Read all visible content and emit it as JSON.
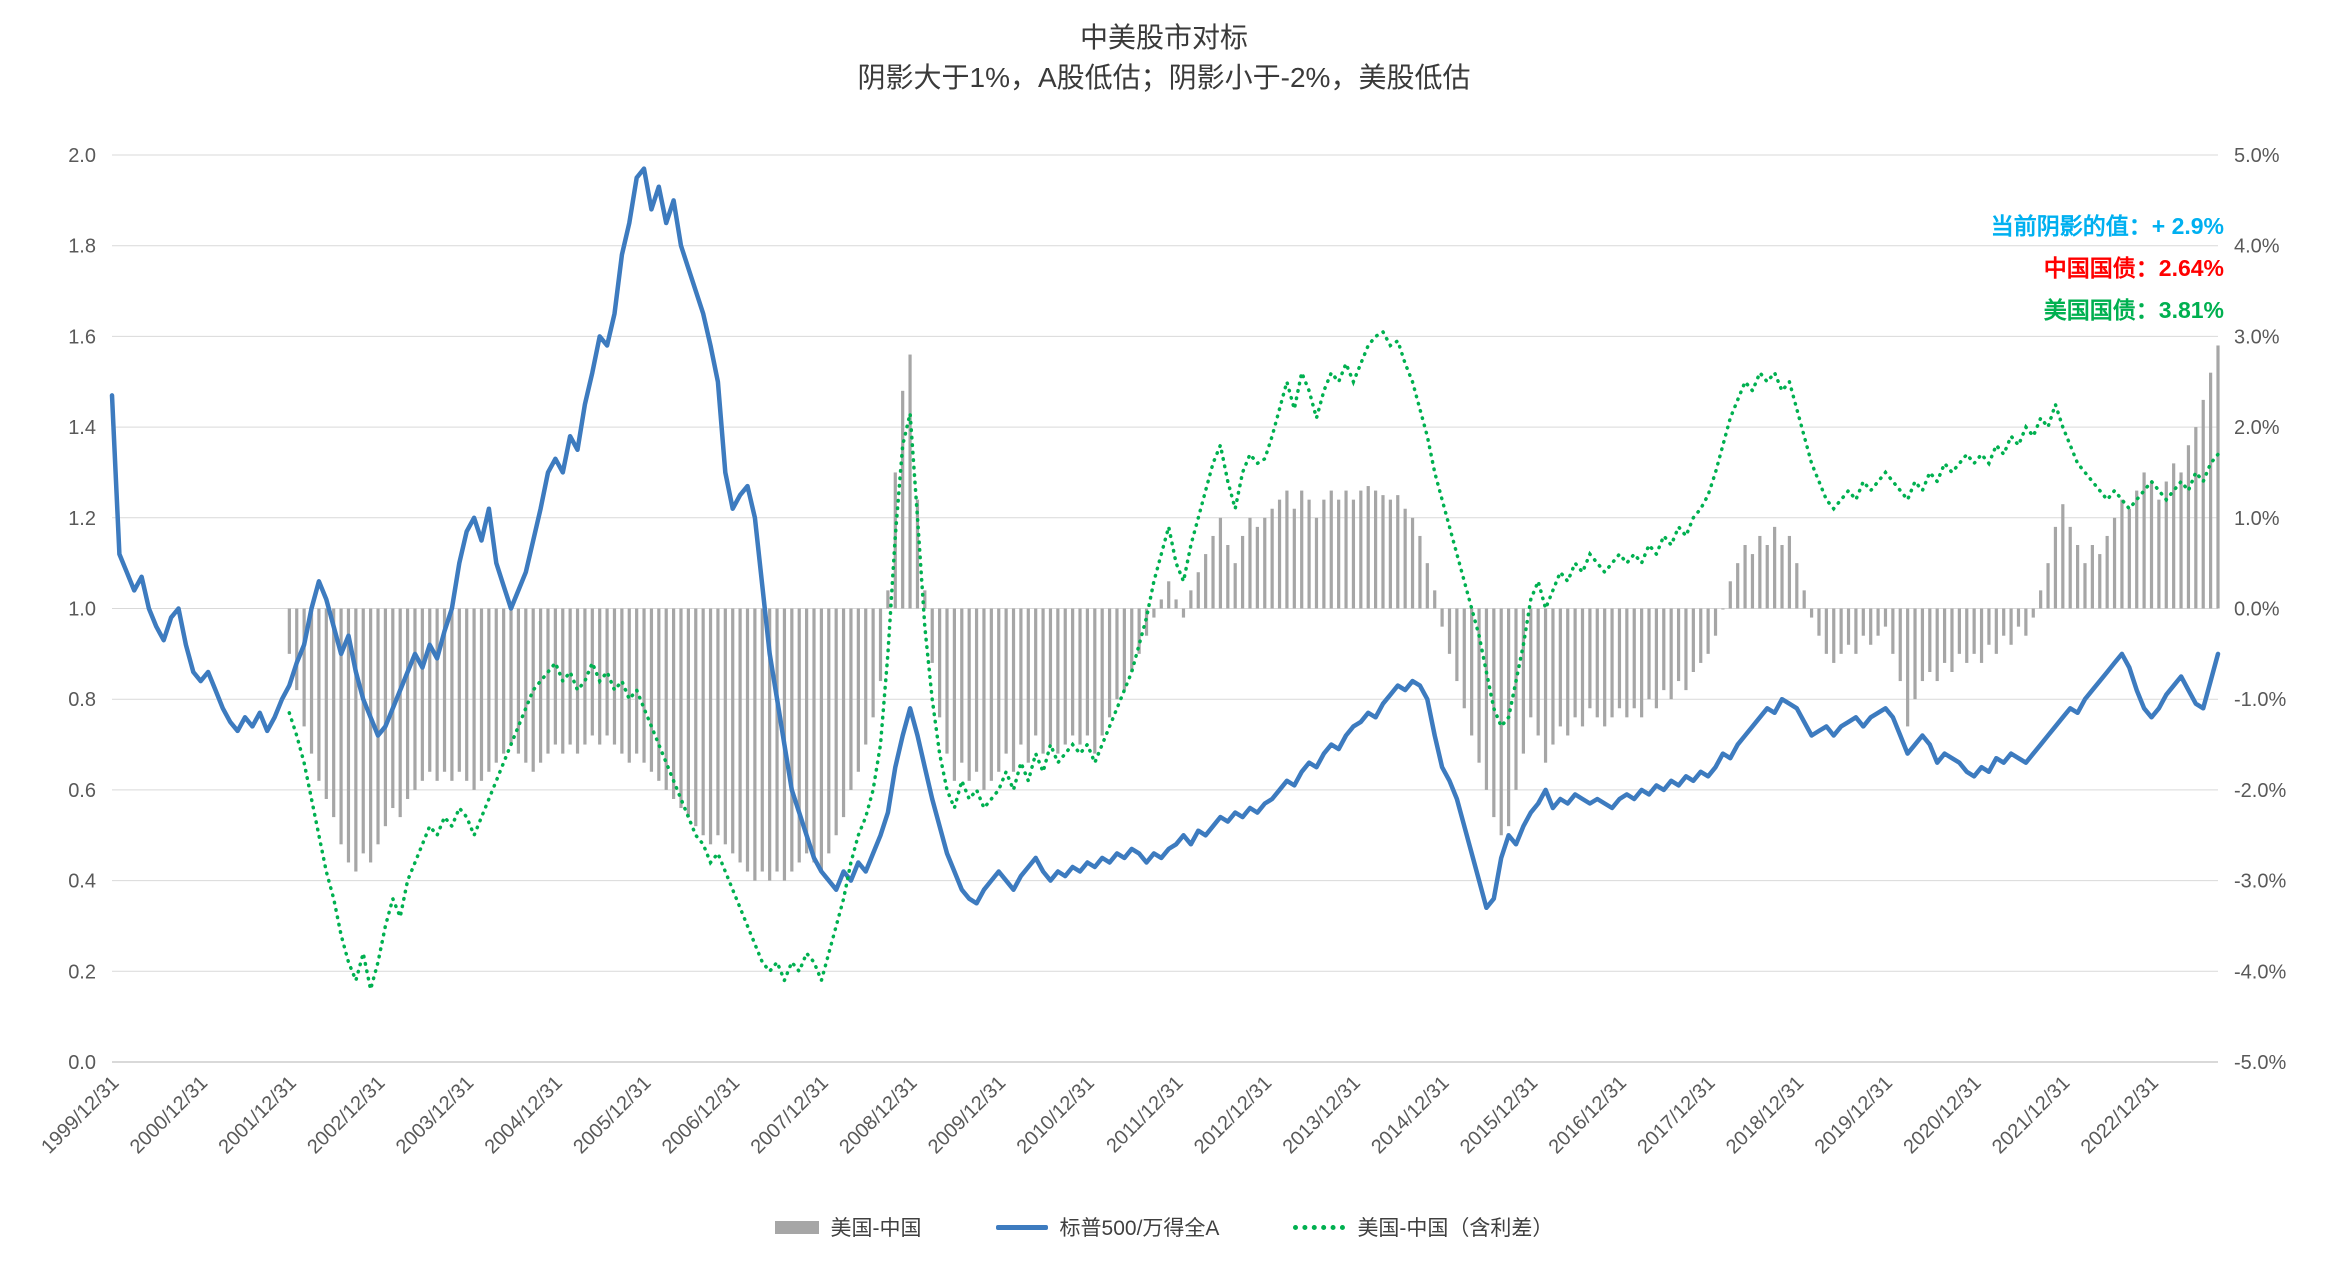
{
  "chart_data": {
    "type": "combo",
    "title": "中美股市对标",
    "subtitle": "阴影大于1%，A股低估；阴影小于-2%，美股低估",
    "x_start_month": "1999/12",
    "x_frequency": "monthly",
    "x_tick_labels": [
      "1999/12/31",
      "2000/12/31",
      "2001/12/31",
      "2002/12/31",
      "2003/12/31",
      "2004/12/31",
      "2005/12/31",
      "2006/12/31",
      "2007/12/31",
      "2008/12/31",
      "2009/12/31",
      "2010/12/31",
      "2011/12/31",
      "2012/12/31",
      "2013/12/31",
      "2014/12/31",
      "2015/12/31",
      "2016/12/31",
      "2017/12/31",
      "2018/12/31",
      "2019/12/31",
      "2020/12/31",
      "2021/12/31",
      "2022/12/31"
    ],
    "x_tick_interval_months": 12,
    "left_axis": {
      "min": 0,
      "max": 2,
      "ticks": [
        "0.0",
        "0.2",
        "0.4",
        "0.6",
        "0.8",
        "1.0",
        "1.2",
        "1.4",
        "1.6",
        "1.8",
        "2.0"
      ]
    },
    "right_axis": {
      "min": -5,
      "max": 5,
      "ticks": [
        "-5.0%",
        "-4.0%",
        "-3.0%",
        "-2.0%",
        "-1.0%",
        "0.0%",
        "1.0%",
        "2.0%",
        "3.0%",
        "4.0%",
        "5.0%"
      ]
    },
    "grid_color": "#d9d9d9",
    "axis_text_color": "#595959",
    "series": [
      {
        "name": "美国-中国",
        "type": "bar",
        "axis": "right",
        "color": "#a6a6a6",
        "values": [
          null,
          null,
          null,
          null,
          null,
          null,
          null,
          null,
          null,
          null,
          null,
          null,
          null,
          null,
          null,
          null,
          null,
          null,
          null,
          null,
          null,
          null,
          null,
          null,
          -0.5,
          -0.9,
          -1.3,
          -1.6,
          -1.9,
          -2.1,
          -2.3,
          -2.6,
          -2.8,
          -2.9,
          -2.7,
          -2.8,
          -2.6,
          -2.4,
          -2.2,
          -2.3,
          -2.1,
          -2.0,
          -1.9,
          -1.8,
          -1.9,
          -1.8,
          -1.9,
          -1.8,
          -1.9,
          -2.0,
          -1.9,
          -1.8,
          -1.7,
          -1.6,
          -1.5,
          -1.6,
          -1.7,
          -1.8,
          -1.7,
          -1.6,
          -1.5,
          -1.6,
          -1.5,
          -1.6,
          -1.5,
          -1.4,
          -1.5,
          -1.4,
          -1.5,
          -1.6,
          -1.7,
          -1.6,
          -1.7,
          -1.8,
          -1.9,
          -2.0,
          -2.1,
          -2.2,
          -2.3,
          -2.4,
          -2.5,
          -2.6,
          -2.5,
          -2.6,
          -2.7,
          -2.8,
          -2.9,
          -3.0,
          -2.9,
          -3.0,
          -2.9,
          -3.0,
          -2.9,
          -2.8,
          -2.7,
          -2.8,
          -2.9,
          -2.7,
          -2.5,
          -2.3,
          -2.0,
          -1.8,
          -1.5,
          -1.2,
          -0.8,
          0.2,
          1.5,
          2.4,
          2.8,
          1.2,
          0.2,
          -0.6,
          -1.2,
          -1.6,
          -1.9,
          -1.7,
          -1.9,
          -1.8,
          -2.0,
          -1.9,
          -1.8,
          -1.6,
          -1.8,
          -1.5,
          -1.7,
          -1.4,
          -1.6,
          -1.5,
          -1.6,
          -1.5,
          -1.4,
          -1.5,
          -1.4,
          -1.6,
          -1.4,
          -1.2,
          -1.0,
          -0.9,
          -0.7,
          -0.5,
          -0.3,
          -0.1,
          0.1,
          0.3,
          0.1,
          -0.1,
          0.2,
          0.4,
          0.6,
          0.8,
          1.0,
          0.7,
          0.5,
          0.8,
          1.0,
          0.9,
          1.0,
          1.1,
          1.2,
          1.3,
          1.1,
          1.3,
          1.2,
          1.0,
          1.2,
          1.3,
          1.2,
          1.3,
          1.2,
          1.3,
          1.35,
          1.3,
          1.25,
          1.2,
          1.25,
          1.1,
          1.0,
          0.8,
          0.5,
          0.2,
          -0.2,
          -0.5,
          -0.8,
          -1.1,
          -1.4,
          -1.7,
          -2.0,
          -2.3,
          -2.5,
          -2.4,
          -2.0,
          -1.6,
          -1.2,
          -1.4,
          -1.7,
          -1.5,
          -1.3,
          -1.4,
          -1.2,
          -1.3,
          -1.1,
          -1.2,
          -1.3,
          -1.2,
          -1.1,
          -1.2,
          -1.1,
          -1.2,
          -1.0,
          -1.1,
          -0.9,
          -1.0,
          -0.8,
          -0.9,
          -0.7,
          -0.6,
          -0.5,
          -0.3,
          0.0,
          0.3,
          0.5,
          0.7,
          0.6,
          0.8,
          0.7,
          0.9,
          0.7,
          0.8,
          0.5,
          0.2,
          -0.1,
          -0.3,
          -0.5,
          -0.6,
          -0.5,
          -0.4,
          -0.5,
          -0.3,
          -0.4,
          -0.3,
          -0.2,
          -0.5,
          -0.8,
          -1.3,
          -1.0,
          -0.8,
          -0.7,
          -0.8,
          -0.6,
          -0.7,
          -0.5,
          -0.6,
          -0.5,
          -0.6,
          -0.4,
          -0.5,
          -0.3,
          -0.4,
          -0.2,
          -0.3,
          -0.1,
          0.2,
          0.5,
          0.9,
          1.15,
          0.9,
          0.7,
          0.5,
          0.7,
          0.6,
          0.8,
          1.0,
          1.2,
          1.1,
          1.3,
          1.5,
          1.4,
          1.2,
          1.4,
          1.6,
          1.5,
          1.8,
          2.0,
          2.3,
          2.6,
          2.9
        ]
      },
      {
        "name": "标普500/万得全A",
        "type": "line",
        "axis": "left",
        "color": "#3d7bbf",
        "values": [
          1.47,
          1.12,
          1.08,
          1.04,
          1.07,
          1.0,
          0.96,
          0.93,
          0.98,
          1.0,
          0.92,
          0.86,
          0.84,
          0.86,
          0.82,
          0.78,
          0.75,
          0.73,
          0.76,
          0.74,
          0.77,
          0.73,
          0.76,
          0.8,
          0.83,
          0.88,
          0.92,
          1.0,
          1.06,
          1.02,
          0.96,
          0.9,
          0.94,
          0.86,
          0.8,
          0.76,
          0.72,
          0.74,
          0.78,
          0.82,
          0.86,
          0.9,
          0.87,
          0.92,
          0.89,
          0.95,
          1.0,
          1.1,
          1.17,
          1.2,
          1.15,
          1.22,
          1.1,
          1.05,
          1.0,
          1.04,
          1.08,
          1.15,
          1.22,
          1.3,
          1.33,
          1.3,
          1.38,
          1.35,
          1.45,
          1.52,
          1.6,
          1.58,
          1.65,
          1.78,
          1.85,
          1.95,
          1.97,
          1.88,
          1.93,
          1.85,
          1.9,
          1.8,
          1.75,
          1.7,
          1.65,
          1.58,
          1.5,
          1.3,
          1.22,
          1.25,
          1.27,
          1.2,
          1.05,
          0.9,
          0.8,
          0.7,
          0.6,
          0.55,
          0.5,
          0.45,
          0.42,
          0.4,
          0.38,
          0.42,
          0.4,
          0.44,
          0.42,
          0.46,
          0.5,
          0.55,
          0.65,
          0.72,
          0.78,
          0.72,
          0.65,
          0.58,
          0.52,
          0.46,
          0.42,
          0.38,
          0.36,
          0.35,
          0.38,
          0.4,
          0.42,
          0.4,
          0.38,
          0.41,
          0.43,
          0.45,
          0.42,
          0.4,
          0.42,
          0.41,
          0.43,
          0.42,
          0.44,
          0.43,
          0.45,
          0.44,
          0.46,
          0.45,
          0.47,
          0.46,
          0.44,
          0.46,
          0.45,
          0.47,
          0.48,
          0.5,
          0.48,
          0.51,
          0.5,
          0.52,
          0.54,
          0.53,
          0.55,
          0.54,
          0.56,
          0.55,
          0.57,
          0.58,
          0.6,
          0.62,
          0.61,
          0.64,
          0.66,
          0.65,
          0.68,
          0.7,
          0.69,
          0.72,
          0.74,
          0.75,
          0.77,
          0.76,
          0.79,
          0.81,
          0.83,
          0.82,
          0.84,
          0.83,
          0.8,
          0.72,
          0.65,
          0.62,
          0.58,
          0.52,
          0.46,
          0.4,
          0.34,
          0.36,
          0.45,
          0.5,
          0.48,
          0.52,
          0.55,
          0.57,
          0.6,
          0.56,
          0.58,
          0.57,
          0.59,
          0.58,
          0.57,
          0.58,
          0.57,
          0.56,
          0.58,
          0.59,
          0.58,
          0.6,
          0.59,
          0.61,
          0.6,
          0.62,
          0.61,
          0.63,
          0.62,
          0.64,
          0.63,
          0.65,
          0.68,
          0.67,
          0.7,
          0.72,
          0.74,
          0.76,
          0.78,
          0.77,
          0.8,
          0.79,
          0.78,
          0.75,
          0.72,
          0.73,
          0.74,
          0.72,
          0.74,
          0.75,
          0.76,
          0.74,
          0.76,
          0.77,
          0.78,
          0.76,
          0.72,
          0.68,
          0.7,
          0.72,
          0.7,
          0.66,
          0.68,
          0.67,
          0.66,
          0.64,
          0.63,
          0.65,
          0.64,
          0.67,
          0.66,
          0.68,
          0.67,
          0.66,
          0.68,
          0.7,
          0.72,
          0.74,
          0.76,
          0.78,
          0.77,
          0.8,
          0.82,
          0.84,
          0.86,
          0.88,
          0.9,
          0.87,
          0.82,
          0.78,
          0.76,
          0.78,
          0.81,
          0.83,
          0.85,
          0.82,
          0.79,
          0.78,
          0.84,
          0.9
        ]
      },
      {
        "name": "美国-中国（含利差）",
        "type": "dotted-line",
        "axis": "right",
        "color": "#00b050",
        "values": [
          null,
          null,
          null,
          null,
          null,
          null,
          null,
          null,
          null,
          null,
          null,
          null,
          null,
          null,
          null,
          null,
          null,
          null,
          null,
          null,
          null,
          null,
          null,
          null,
          -1.15,
          -1.4,
          -1.7,
          -2.1,
          -2.5,
          -2.9,
          -3.2,
          -3.6,
          -3.9,
          -4.1,
          -3.8,
          -4.2,
          -3.9,
          -3.5,
          -3.2,
          -3.4,
          -3.0,
          -2.8,
          -2.6,
          -2.4,
          -2.5,
          -2.3,
          -2.4,
          -2.2,
          -2.3,
          -2.5,
          -2.3,
          -2.1,
          -1.9,
          -1.7,
          -1.5,
          -1.3,
          -1.1,
          -0.9,
          -0.8,
          -0.7,
          -0.6,
          -0.8,
          -0.7,
          -0.9,
          -0.8,
          -0.6,
          -0.8,
          -0.7,
          -0.9,
          -0.8,
          -1.0,
          -0.9,
          -1.1,
          -1.3,
          -1.5,
          -1.7,
          -1.9,
          -2.1,
          -2.3,
          -2.5,
          -2.6,
          -2.8,
          -2.7,
          -2.9,
          -3.1,
          -3.3,
          -3.5,
          -3.7,
          -3.9,
          -4.0,
          -3.9,
          -4.1,
          -3.9,
          -4.0,
          -3.8,
          -3.9,
          -4.1,
          -3.8,
          -3.5,
          -3.2,
          -2.8,
          -2.5,
          -2.3,
          -2.0,
          -1.5,
          -0.5,
          0.8,
          1.8,
          2.15,
          1.0,
          -0.2,
          -1.0,
          -1.6,
          -2.0,
          -2.2,
          -1.9,
          -2.1,
          -2.0,
          -2.2,
          -2.1,
          -2.0,
          -1.8,
          -2.0,
          -1.7,
          -1.9,
          -1.6,
          -1.8,
          -1.5,
          -1.7,
          -1.6,
          -1.5,
          -1.6,
          -1.5,
          -1.7,
          -1.5,
          -1.3,
          -1.1,
          -0.9,
          -0.7,
          -0.4,
          -0.1,
          0.3,
          0.6,
          0.9,
          0.5,
          0.3,
          0.7,
          1.0,
          1.3,
          1.6,
          1.8,
          1.4,
          1.1,
          1.5,
          1.7,
          1.6,
          1.65,
          1.9,
          2.2,
          2.5,
          2.2,
          2.6,
          2.4,
          2.1,
          2.4,
          2.6,
          2.5,
          2.7,
          2.5,
          2.7,
          2.9,
          3.0,
          3.05,
          2.9,
          2.95,
          2.7,
          2.5,
          2.2,
          1.9,
          1.5,
          1.2,
          0.9,
          0.6,
          0.3,
          0.0,
          -0.3,
          -0.7,
          -1.1,
          -1.3,
          -1.2,
          -0.8,
          -0.4,
          0.1,
          0.3,
          0.0,
          0.2,
          0.4,
          0.3,
          0.5,
          0.4,
          0.6,
          0.5,
          0.4,
          0.5,
          0.6,
          0.5,
          0.6,
          0.5,
          0.7,
          0.6,
          0.8,
          0.7,
          0.9,
          0.8,
          1.0,
          1.1,
          1.25,
          1.5,
          1.8,
          2.1,
          2.3,
          2.5,
          2.4,
          2.6,
          2.5,
          2.6,
          2.4,
          2.5,
          2.2,
          1.9,
          1.6,
          1.4,
          1.2,
          1.1,
          1.2,
          1.3,
          1.2,
          1.4,
          1.3,
          1.4,
          1.5,
          1.4,
          1.3,
          1.2,
          1.4,
          1.3,
          1.5,
          1.4,
          1.6,
          1.5,
          1.6,
          1.7,
          1.6,
          1.7,
          1.6,
          1.8,
          1.7,
          1.9,
          1.8,
          2.0,
          1.9,
          2.1,
          2.0,
          2.25,
          2.0,
          1.8,
          1.6,
          1.5,
          1.4,
          1.3,
          1.2,
          1.3,
          1.2,
          1.1,
          1.2,
          1.3,
          1.4,
          1.3,
          1.2,
          1.3,
          1.4,
          1.3,
          1.5,
          1.4,
          1.6,
          1.7
        ]
      }
    ],
    "annotations": [
      {
        "text": "当前阴影的值：+ 2.9%",
        "color": "#00b0f0"
      },
      {
        "text": "中国国债：2.64%",
        "color": "#ff0000"
      },
      {
        "text": "美国国债：3.81%",
        "color": "#00b050"
      }
    ],
    "legend_position": "bottom-center",
    "grid": true
  }
}
